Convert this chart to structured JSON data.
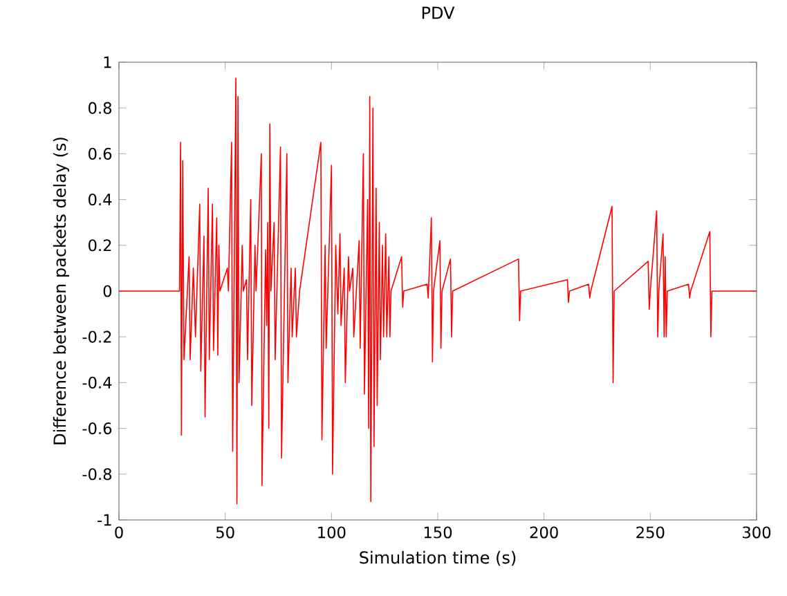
{
  "chart_data": {
    "type": "line",
    "title": "PDV",
    "xlabel": "Simulation time (s)",
    "ylabel": "Difference between packets delay (s)",
    "xlim": [
      0,
      300
    ],
    "ylim": [
      -1,
      1
    ],
    "xticks": [
      0,
      50,
      100,
      150,
      200,
      250,
      300
    ],
    "yticks": [
      -1,
      -0.8,
      -0.6,
      -0.4,
      -0.2,
      0,
      0.2,
      0.4,
      0.6,
      0.8,
      1
    ],
    "x": [
      0,
      28.5,
      29,
      29.4,
      30,
      30.6,
      33,
      33.5,
      35,
      36,
      38,
      38.5,
      40,
      40.5,
      42,
      42.5,
      44,
      44.5,
      46,
      46.5,
      47,
      47.5,
      51,
      51.5,
      53,
      53.5,
      55,
      55.5,
      56,
      56.5,
      58,
      58.5,
      60,
      60.5,
      62,
      62.5,
      64,
      64.5,
      67,
      67.3,
      69,
      69.5,
      70,
      70.5,
      71,
      71.5,
      73,
      73.5,
      76,
      76.5,
      79,
      79.5,
      81,
      81.5,
      83,
      83.5,
      85,
      95,
      95.5,
      97,
      97.5,
      100,
      100.5,
      102,
      103,
      104,
      104.5,
      106,
      106.5,
      108,
      108.5,
      110,
      110.5,
      113,
      113.5,
      115,
      115.5,
      117,
      117.5,
      118,
      118.5,
      119.5,
      120,
      121,
      121.5,
      122.5,
      123,
      124,
      124.5,
      125.5,
      126,
      127,
      127.5,
      128,
      133,
      133.5,
      134,
      145,
      145.5,
      147,
      147.5,
      148,
      151,
      151.5,
      152,
      156,
      156.5,
      157,
      188,
      188.5,
      189,
      211,
      211.5,
      212,
      221,
      221.5,
      222,
      232,
      232.5,
      233,
      249,
      249.5,
      250,
      253,
      253.5,
      254,
      256,
      256.5,
      257,
      257.5,
      258,
      268,
      268.5,
      269,
      278,
      278.5,
      279,
      300
    ],
    "series": [
      {
        "color": "#ff0000",
        "values": [
          0,
          0,
          0.65,
          -0.63,
          0.57,
          -0.3,
          0.15,
          -0.3,
          0.1,
          -0.2,
          0.38,
          -0.35,
          0.24,
          -0.55,
          0.45,
          -0.3,
          0.38,
          -0.26,
          0.32,
          -0.28,
          0.2,
          0,
          0.1,
          0,
          0.65,
          -0.7,
          0.93,
          -0.93,
          0.85,
          -0.4,
          0.2,
          0,
          0.05,
          -0.3,
          0.4,
          -0.5,
          0.2,
          0,
          0.6,
          -0.85,
          0.18,
          -0.15,
          0.3,
          -0.6,
          0.73,
          0,
          0.3,
          -0.3,
          0.63,
          -0.73,
          0.6,
          -0.4,
          0.1,
          -0.2,
          0.1,
          -0.2,
          0,
          0.65,
          -0.65,
          0.2,
          -0.25,
          0.55,
          -0.8,
          0.2,
          -0.1,
          0.25,
          -0.15,
          0.1,
          -0.4,
          0.15,
          0,
          0.1,
          -0.2,
          0.22,
          -0.25,
          0.6,
          -0.45,
          0.4,
          -0.6,
          0.85,
          -0.92,
          0.8,
          -0.68,
          0.45,
          -0.5,
          0.3,
          -0.3,
          0.2,
          -0.2,
          0.25,
          -0.2,
          0.15,
          -0.2,
          0,
          0.15,
          -0.07,
          0,
          0.03,
          -0.03,
          0.32,
          -0.31,
          0,
          0.22,
          -0.25,
          0,
          0.14,
          -0.2,
          0,
          0.14,
          -0.13,
          0,
          0.05,
          -0.05,
          0,
          0.03,
          -0.03,
          0,
          0.37,
          -0.4,
          0,
          0.13,
          -0.08,
          0,
          0.35,
          -0.2,
          0,
          0.25,
          -0.2,
          0.15,
          -0.2,
          0,
          0.03,
          -0.03,
          0,
          0.26,
          -0.2,
          0,
          0
        ]
      }
    ]
  }
}
